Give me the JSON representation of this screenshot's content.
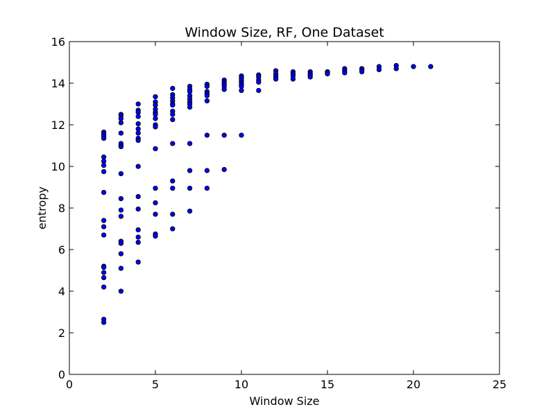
{
  "chart_data": {
    "type": "scatter",
    "title": "Window Size, RF, One Dataset",
    "xlabel": "Window Size",
    "ylabel": "entropy",
    "xlim": [
      0,
      25
    ],
    "ylim": [
      0,
      16
    ],
    "xticks": [
      0,
      5,
      10,
      15,
      20,
      25
    ],
    "yticks": [
      0,
      2,
      4,
      6,
      8,
      10,
      12,
      14,
      16
    ],
    "grid": false,
    "marker_color": "#0000ff",
    "marker_edge": "#000000",
    "points": [
      [
        2,
        11.65
      ],
      [
        2,
        11.55
      ],
      [
        2,
        11.45
      ],
      [
        2,
        11.35
      ],
      [
        2,
        10.45
      ],
      [
        2,
        10.25
      ],
      [
        2,
        10.05
      ],
      [
        2,
        9.75
      ],
      [
        2,
        8.75
      ],
      [
        2,
        7.4
      ],
      [
        2,
        7.1
      ],
      [
        2,
        6.7
      ],
      [
        2,
        5.2
      ],
      [
        2,
        5.15
      ],
      [
        2,
        4.9
      ],
      [
        2,
        4.65
      ],
      [
        2,
        4.2
      ],
      [
        2,
        2.65
      ],
      [
        2,
        2.5
      ],
      [
        3,
        12.5
      ],
      [
        3,
        12.45
      ],
      [
        3,
        12.3
      ],
      [
        3,
        12.1
      ],
      [
        3,
        11.6
      ],
      [
        3,
        11.1
      ],
      [
        3,
        11.0
      ],
      [
        3,
        10.95
      ],
      [
        3,
        9.65
      ],
      [
        3,
        8.45
      ],
      [
        3,
        7.9
      ],
      [
        3,
        7.6
      ],
      [
        3,
        6.4
      ],
      [
        3,
        6.3
      ],
      [
        3,
        5.8
      ],
      [
        3,
        5.1
      ],
      [
        3,
        4.0
      ],
      [
        4,
        13.0
      ],
      [
        4,
        12.7
      ],
      [
        4,
        12.6
      ],
      [
        4,
        12.4
      ],
      [
        4,
        12.05
      ],
      [
        4,
        11.8
      ],
      [
        4,
        11.6
      ],
      [
        4,
        11.35
      ],
      [
        4,
        11.25
      ],
      [
        4,
        10.0
      ],
      [
        4,
        8.55
      ],
      [
        4,
        7.95
      ],
      [
        4,
        6.95
      ],
      [
        4,
        6.6
      ],
      [
        4,
        6.35
      ],
      [
        4,
        5.4
      ],
      [
        5,
        13.35
      ],
      [
        5,
        13.1
      ],
      [
        5,
        12.95
      ],
      [
        5,
        12.75
      ],
      [
        5,
        12.6
      ],
      [
        5,
        12.5
      ],
      [
        5,
        12.3
      ],
      [
        5,
        12.0
      ],
      [
        5,
        11.9
      ],
      [
        5,
        10.85
      ],
      [
        5,
        8.95
      ],
      [
        5,
        8.25
      ],
      [
        5,
        7.7
      ],
      [
        5,
        6.75
      ],
      [
        5,
        6.65
      ],
      [
        6,
        13.75
      ],
      [
        6,
        13.45
      ],
      [
        6,
        13.3
      ],
      [
        6,
        13.15
      ],
      [
        6,
        13.0
      ],
      [
        6,
        12.95
      ],
      [
        6,
        12.65
      ],
      [
        6,
        12.5
      ],
      [
        6,
        12.25
      ],
      [
        6,
        11.1
      ],
      [
        6,
        9.3
      ],
      [
        6,
        8.95
      ],
      [
        6,
        7.7
      ],
      [
        6,
        7.0
      ],
      [
        7,
        13.85
      ],
      [
        7,
        13.7
      ],
      [
        7,
        13.6
      ],
      [
        7,
        13.4
      ],
      [
        7,
        13.25
      ],
      [
        7,
        13.1
      ],
      [
        7,
        13.0
      ],
      [
        7,
        12.85
      ],
      [
        7,
        11.1
      ],
      [
        7,
        9.8
      ],
      [
        7,
        8.95
      ],
      [
        7,
        7.85
      ],
      [
        8,
        13.95
      ],
      [
        8,
        13.85
      ],
      [
        8,
        13.6
      ],
      [
        8,
        13.5
      ],
      [
        8,
        13.4
      ],
      [
        8,
        13.15
      ],
      [
        8,
        11.5
      ],
      [
        8,
        9.8
      ],
      [
        8,
        8.95
      ],
      [
        9,
        14.15
      ],
      [
        9,
        14.05
      ],
      [
        9,
        13.95
      ],
      [
        9,
        13.85
      ],
      [
        9,
        13.7
      ],
      [
        9,
        11.5
      ],
      [
        9,
        9.85
      ],
      [
        10,
        14.35
      ],
      [
        10,
        14.25
      ],
      [
        10,
        14.15
      ],
      [
        10,
        14.05
      ],
      [
        10,
        13.95
      ],
      [
        10,
        13.85
      ],
      [
        10,
        13.65
      ],
      [
        10,
        11.5
      ],
      [
        11,
        14.4
      ],
      [
        11,
        14.3
      ],
      [
        11,
        14.15
      ],
      [
        11,
        14.05
      ],
      [
        11,
        13.65
      ],
      [
        12,
        14.6
      ],
      [
        12,
        14.45
      ],
      [
        12,
        14.35
      ],
      [
        12,
        14.25
      ],
      [
        12,
        14.2
      ],
      [
        13,
        14.55
      ],
      [
        13,
        14.45
      ],
      [
        13,
        14.35
      ],
      [
        13,
        14.2
      ],
      [
        14,
        14.55
      ],
      [
        14,
        14.45
      ],
      [
        14,
        14.4
      ],
      [
        14,
        14.3
      ],
      [
        15,
        14.55
      ],
      [
        15,
        14.5
      ],
      [
        15,
        14.45
      ],
      [
        16,
        14.7
      ],
      [
        16,
        14.6
      ],
      [
        16,
        14.5
      ],
      [
        17,
        14.7
      ],
      [
        17,
        14.65
      ],
      [
        17,
        14.55
      ],
      [
        18,
        14.8
      ],
      [
        18,
        14.65
      ],
      [
        19,
        14.85
      ],
      [
        19,
        14.7
      ],
      [
        20,
        14.8
      ],
      [
        21,
        14.8
      ]
    ]
  }
}
